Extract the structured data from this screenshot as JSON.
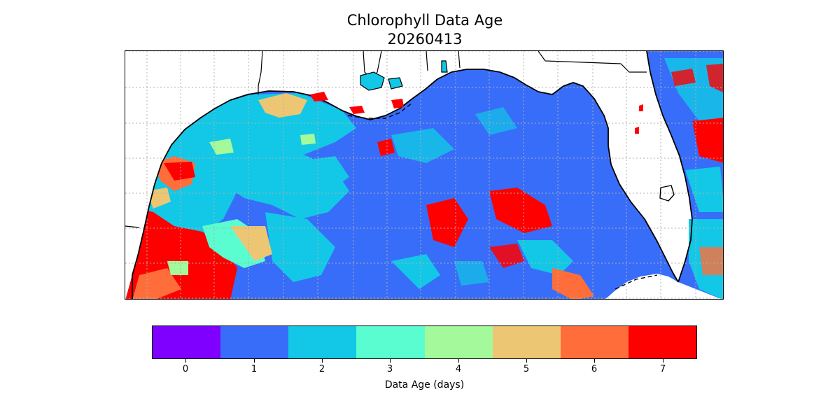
{
  "title": {
    "line1": "Chlorophyll Data Age",
    "line2": "20260413"
  },
  "map": {
    "region": "gulf-of-mexico",
    "colors": {
      "land": "#ffffff",
      "coastline": "#000000",
      "gridline": "#b0b0b0"
    },
    "gridlines": "dotted"
  },
  "colorbar": {
    "label": "Data Age (days)",
    "ticks": [
      "0",
      "1",
      "2",
      "3",
      "4",
      "5",
      "6",
      "7"
    ],
    "colors": [
      "#7f00ff",
      "#386df9",
      "#12c8e6",
      "#5afdcf",
      "#a4f99a",
      "#edc674",
      "#ff6e3a",
      "#ff0000"
    ]
  }
}
